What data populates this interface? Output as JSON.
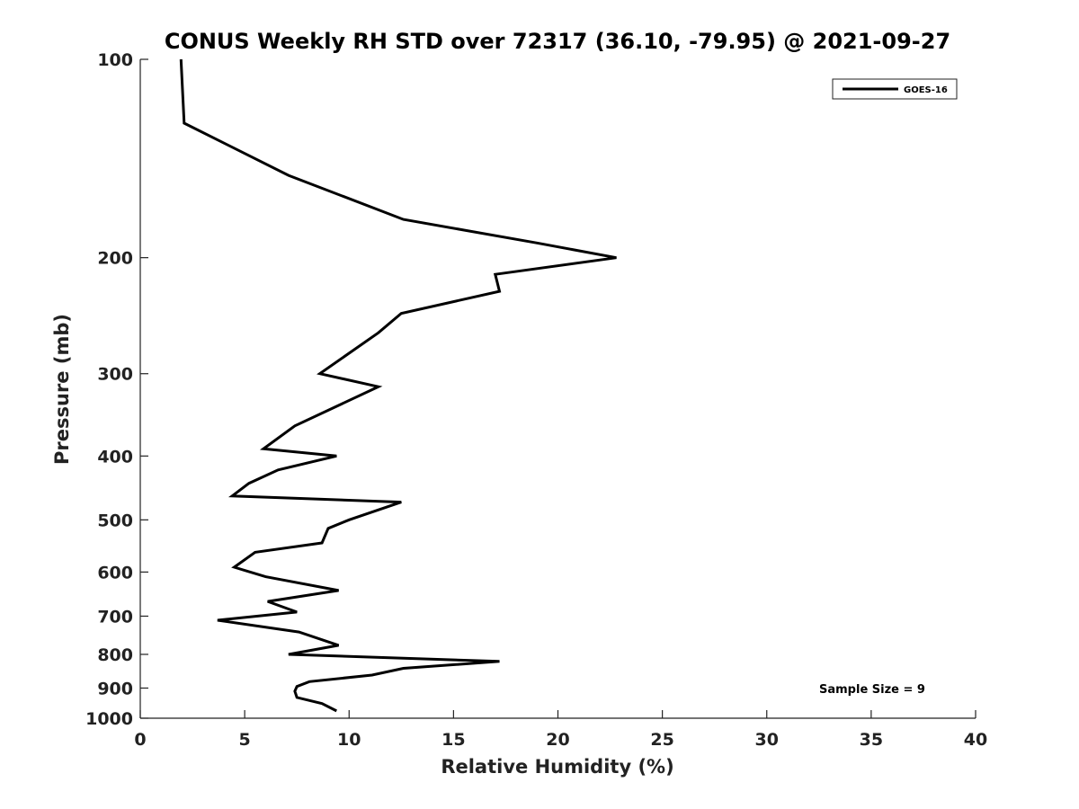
{
  "chart_data": {
    "type": "line",
    "title": "CONUS Weekly RH STD over 72317 (36.10, -79.95) @ 2021-09-27",
    "xlabel": "Relative Humidity (%)",
    "ylabel": "Pressure (mb)",
    "xlim": [
      0,
      40
    ],
    "ylim": [
      100,
      1000
    ],
    "y_scale": "log",
    "y_reversed": true,
    "x_ticks": [
      0,
      5,
      10,
      15,
      20,
      25,
      30,
      35,
      40
    ],
    "y_ticks": [
      100,
      200,
      300,
      400,
      500,
      600,
      700,
      800,
      900,
      1000
    ],
    "grid": false,
    "legend_position": "top-right",
    "annotation": "Sample Size = 9",
    "series": [
      {
        "name": "GOES-16",
        "color": "#000000",
        "points": [
          [
            1.95,
            100
          ],
          [
            2.1,
            125
          ],
          [
            7.1,
            150
          ],
          [
            12.6,
            175
          ],
          [
            19.0,
            190
          ],
          [
            22.8,
            200
          ],
          [
            17.0,
            212
          ],
          [
            17.2,
            225
          ],
          [
            12.5,
            243
          ],
          [
            11.4,
            260
          ],
          [
            8.6,
            300
          ],
          [
            11.4,
            314
          ],
          [
            7.4,
            360
          ],
          [
            5.9,
            390
          ],
          [
            9.4,
            400
          ],
          [
            6.6,
            420
          ],
          [
            5.2,
            440
          ],
          [
            4.4,
            460
          ],
          [
            12.5,
            470
          ],
          [
            10.0,
            500
          ],
          [
            9.0,
            515
          ],
          [
            8.7,
            542
          ],
          [
            5.5,
            560
          ],
          [
            4.5,
            590
          ],
          [
            6.0,
            610
          ],
          [
            9.5,
            640
          ],
          [
            6.1,
            665
          ],
          [
            7.5,
            690
          ],
          [
            3.7,
            710
          ],
          [
            7.6,
            740
          ],
          [
            9.5,
            775
          ],
          [
            7.1,
            800
          ],
          [
            17.2,
            820
          ],
          [
            12.6,
            840
          ],
          [
            11.1,
            860
          ],
          [
            8.1,
            880
          ],
          [
            7.5,
            895
          ],
          [
            7.4,
            910
          ],
          [
            7.5,
            930
          ],
          [
            8.7,
            950
          ],
          [
            9.4,
            975
          ]
        ]
      }
    ]
  }
}
